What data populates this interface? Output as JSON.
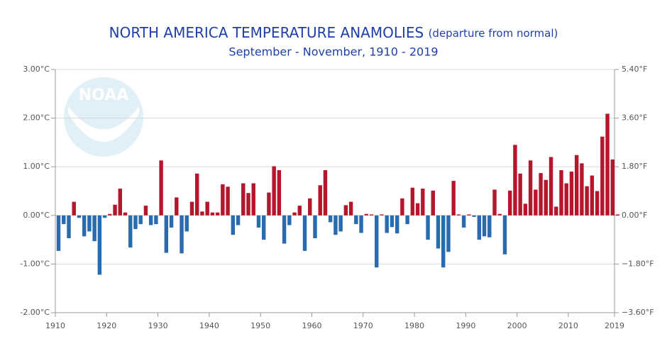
{
  "chart_data": {
    "type": "bar",
    "title": "NORTH AMERICA TEMPERATURE ANAMOLIES",
    "title_note": "(departure from normal)",
    "subtitle": "September - November, 1910 - 2019",
    "watermark": "NOAA",
    "x": [
      1910,
      1911,
      1912,
      1913,
      1914,
      1915,
      1916,
      1917,
      1918,
      1919,
      1920,
      1921,
      1922,
      1923,
      1924,
      1925,
      1926,
      1927,
      1928,
      1929,
      1930,
      1931,
      1932,
      1933,
      1934,
      1935,
      1936,
      1937,
      1938,
      1939,
      1940,
      1941,
      1942,
      1943,
      1944,
      1945,
      1946,
      1947,
      1948,
      1949,
      1950,
      1951,
      1952,
      1953,
      1954,
      1955,
      1956,
      1957,
      1958,
      1959,
      1960,
      1961,
      1962,
      1963,
      1964,
      1965,
      1966,
      1967,
      1968,
      1969,
      1970,
      1971,
      1972,
      1973,
      1974,
      1975,
      1976,
      1977,
      1978,
      1979,
      1980,
      1981,
      1982,
      1983,
      1984,
      1985,
      1986,
      1987,
      1988,
      1989,
      1990,
      1991,
      1992,
      1993,
      1994,
      1995,
      1996,
      1997,
      1998,
      1999,
      2000,
      2001,
      2002,
      2003,
      2004,
      2005,
      2006,
      2007,
      2008,
      2009,
      2010,
      2011,
      2012,
      2013,
      2014,
      2015,
      2016,
      2017,
      2018,
      2019
    ],
    "values": [
      -0.73,
      -0.18,
      -0.47,
      0.28,
      -0.05,
      -0.43,
      -0.33,
      -0.53,
      -1.22,
      -0.05,
      0.03,
      0.22,
      0.55,
      0.06,
      -0.66,
      -0.28,
      -0.18,
      0.2,
      -0.2,
      -0.18,
      1.13,
      -0.77,
      -0.25,
      0.37,
      -0.78,
      -0.33,
      0.28,
      0.86,
      0.08,
      0.28,
      0.06,
      0.06,
      0.64,
      0.59,
      -0.4,
      -0.2,
      0.66,
      0.46,
      0.66,
      -0.25,
      -0.5,
      0.47,
      1.01,
      0.93,
      -0.58,
      -0.2,
      0.06,
      0.2,
      -0.73,
      0.35,
      -0.47,
      0.62,
      0.93,
      -0.14,
      -0.4,
      -0.33,
      0.21,
      0.28,
      -0.18,
      -0.36,
      0.03,
      0.02,
      -1.07,
      0.02,
      -0.36,
      -0.24,
      -0.37,
      0.35,
      -0.18,
      0.57,
      0.25,
      0.55,
      -0.5,
      0.51,
      -0.68,
      -1.07,
      -0.75,
      0.71,
      0.02,
      -0.25,
      0.02,
      -0.03,
      -0.5,
      -0.43,
      -0.45,
      0.53,
      0.03,
      -0.8,
      0.51,
      1.45,
      0.86,
      0.24,
      1.13,
      0.53,
      0.87,
      0.73,
      1.2,
      0.18,
      0.93,
      0.66,
      0.9,
      1.24,
      1.07,
      0.6,
      0.82,
      0.5,
      1.62,
      2.09,
      1.15,
      0.02
    ],
    "positive_color": "#b5162b",
    "negative_color": "#2a6bb0",
    "xlim": [
      1910,
      2019
    ],
    "xticks": [
      1910,
      1920,
      1930,
      1940,
      1950,
      1960,
      1970,
      1980,
      1990,
      2000,
      2010,
      2019
    ],
    "ylim": [
      -2,
      3
    ],
    "yticks": [
      {
        "value": -2,
        "label": "-2.00°C"
      },
      {
        "value": -1,
        "label": "-1.00°C"
      },
      {
        "value": 0,
        "label": "0.00°C"
      },
      {
        "value": 1,
        "label": "1.00°C"
      },
      {
        "value": 2,
        "label": "2.00°C"
      },
      {
        "value": 3,
        "label": "3.00°C"
      }
    ],
    "y2lim": [
      -3.6,
      5.4
    ],
    "y2ticks": [
      {
        "value": -3.6,
        "label": "−3.60°F"
      },
      {
        "value": -1.8,
        "label": "−1.80°F"
      },
      {
        "value": 0,
        "label": "0.00°F"
      },
      {
        "value": 1.8,
        "label": "1.80°F"
      },
      {
        "value": 3.6,
        "label": "3.60°F"
      },
      {
        "value": 5.4,
        "label": "5.40°F"
      }
    ],
    "grid": true
  }
}
